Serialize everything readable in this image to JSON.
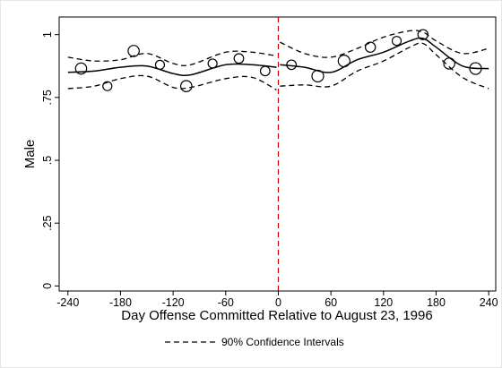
{
  "chart_data": {
    "type": "scatter",
    "xlabel": "Day Offense Committed Relative to August 23, 1996",
    "ylabel": "Male",
    "xlim": [
      -250,
      248
    ],
    "ylim": [
      -0.02,
      1.07
    ],
    "x_ticks": [
      -240,
      -180,
      -120,
      -60,
      0,
      60,
      120,
      180,
      240
    ],
    "y_ticks": [
      0,
      0.25,
      0.5,
      0.75,
      1
    ],
    "y_tick_labels": [
      "0",
      ".25",
      ".5",
      ".75",
      "1"
    ],
    "cutoff_x": 0,
    "cutoff_color": "#cc0000",
    "legend": {
      "entries": [
        {
          "label": "90% Confidence Intervals",
          "style": "dashed"
        }
      ],
      "position": "bottom-center"
    },
    "points": [
      {
        "x": -225,
        "y": 0.865,
        "size": 1.0
      },
      {
        "x": -195,
        "y": 0.795,
        "size": 0.8
      },
      {
        "x": -165,
        "y": 0.935,
        "size": 1.0
      },
      {
        "x": -135,
        "y": 0.88,
        "size": 0.8
      },
      {
        "x": -105,
        "y": 0.795,
        "size": 1.0
      },
      {
        "x": -75,
        "y": 0.885,
        "size": 0.8
      },
      {
        "x": -45,
        "y": 0.905,
        "size": 0.85
      },
      {
        "x": -15,
        "y": 0.855,
        "size": 0.85
      },
      {
        "x": 15,
        "y": 0.88,
        "size": 0.85
      },
      {
        "x": 45,
        "y": 0.835,
        "size": 1.05
      },
      {
        "x": 75,
        "y": 0.895,
        "size": 1.05
      },
      {
        "x": 105,
        "y": 0.95,
        "size": 0.9
      },
      {
        "x": 135,
        "y": 0.975,
        "size": 0.8
      },
      {
        "x": 165,
        "y": 1.0,
        "size": 0.9
      },
      {
        "x": 195,
        "y": 0.885,
        "size": 1.0
      },
      {
        "x": 225,
        "y": 0.865,
        "size": 1.05
      }
    ],
    "series": [
      {
        "style": "solid",
        "segments": [
          {
            "x": [
              -240,
              -210,
              -180,
              -150,
              -120,
              -100,
              -60,
              -30,
              -2
            ],
            "y": [
              0.85,
              0.855,
              0.87,
              0.875,
              0.845,
              0.84,
              0.88,
              0.88,
              0.87
            ]
          },
          {
            "x": [
              2,
              30,
              60,
              90,
              120,
              150,
              165,
              180,
              210,
              240
            ],
            "y": [
              0.88,
              0.87,
              0.85,
              0.9,
              0.93,
              0.975,
              0.985,
              0.95,
              0.875,
              0.865
            ]
          }
        ]
      },
      {
        "style": "dashed",
        "name_ref": "90% Confidence Intervals",
        "segments": [
          {
            "x": [
              -240,
              -210,
              -180,
              -150,
              -120,
              -100,
              -60,
              -30,
              -2
            ],
            "y": [
              0.91,
              0.895,
              0.9,
              0.925,
              0.885,
              0.88,
              0.93,
              0.93,
              0.915
            ]
          },
          {
            "x": [
              -240,
              -210,
              -180,
              -150,
              -120,
              -100,
              -60,
              -30,
              -2
            ],
            "y": [
              0.785,
              0.795,
              0.825,
              0.835,
              0.79,
              0.79,
              0.825,
              0.83,
              0.78
            ]
          },
          {
            "x": [
              2,
              30,
              60,
              90,
              120,
              150,
              165,
              180,
              210,
              240
            ],
            "y": [
              0.97,
              0.925,
              0.91,
              0.945,
              0.99,
              1.015,
              1.01,
              0.975,
              0.925,
              0.945
            ]
          },
          {
            "x": [
              2,
              30,
              60,
              90,
              120,
              150,
              165,
              180,
              210,
              240
            ],
            "y": [
              0.795,
              0.8,
              0.795,
              0.855,
              0.895,
              0.95,
              0.965,
              0.92,
              0.83,
              0.785
            ]
          }
        ]
      }
    ]
  }
}
